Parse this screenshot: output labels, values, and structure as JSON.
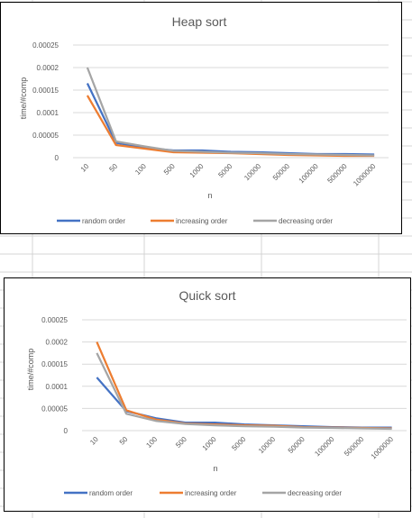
{
  "chart_data": [
    {
      "type": "line",
      "title": "Heap sort",
      "xlabel": "n",
      "ylabel": "time/#comp",
      "categories": [
        "10",
        "50",
        "100",
        "500",
        "1000",
        "5000",
        "10000",
        "50000",
        "100000",
        "500000",
        "1000000"
      ],
      "y_ticks": [
        "0.00025",
        "0.0002",
        "0.00015",
        "0.0001",
        "0.00005",
        "0"
      ],
      "ylim": [
        0,
        0.00025
      ],
      "grid": true,
      "legend_position": "bottom",
      "series": [
        {
          "name": "random order",
          "color": "#4472C4",
          "values": [
            0.000165,
            3.3e-05,
            2.2e-05,
            1.6e-05,
            1.6e-05,
            1.3e-05,
            1.2e-05,
            1e-05,
            8e-06,
            8e-06,
            7e-06
          ]
        },
        {
          "name": "increasing order",
          "color": "#ED7D31",
          "values": [
            0.000138,
            2.8e-05,
            2e-05,
            1.2e-05,
            1.1e-05,
            1e-05,
            8e-06,
            6e-06,
            5e-06,
            4e-06,
            4e-06
          ]
        },
        {
          "name": "decreasing order",
          "color": "#A5A5A5",
          "values": [
            0.0002,
            3.6e-05,
            2.5e-05,
            1.5e-05,
            1.3e-05,
            1.1e-05,
            1e-05,
            8e-06,
            7e-06,
            6e-06,
            5e-06
          ]
        }
      ]
    },
    {
      "type": "line",
      "title": "Quick sort",
      "xlabel": "n",
      "ylabel": "time/#comp",
      "categories": [
        "10",
        "50",
        "100",
        "500",
        "1000",
        "5000",
        "10000",
        "50000",
        "100000",
        "500000",
        "1000000"
      ],
      "y_ticks": [
        "0.00025",
        "0.0002",
        "0.00015",
        "0.0001",
        "0.00005",
        "0"
      ],
      "ylim": [
        0,
        0.00025
      ],
      "grid": true,
      "legend_position": "bottom",
      "series": [
        {
          "name": "random order",
          "color": "#4472C4",
          "values": [
            0.00012,
            4.4e-05,
            2.8e-05,
            1.8e-05,
            1.8e-05,
            1.4e-05,
            1.2e-05,
            1e-05,
            8e-06,
            7e-06,
            7e-06
          ]
        },
        {
          "name": "increasing order",
          "color": "#ED7D31",
          "values": [
            0.0002,
            4.6e-05,
            2.5e-05,
            1.6e-05,
            1.4e-05,
            1.2e-05,
            1.1e-05,
            8e-06,
            7e-06,
            6e-06,
            5e-06
          ]
        },
        {
          "name": "decreasing order",
          "color": "#A5A5A5",
          "values": [
            0.000175,
            3.8e-05,
            2.2e-05,
            1.5e-05,
            1.2e-05,
            1e-05,
            9e-06,
            7e-06,
            6e-06,
            5e-06,
            4e-06
          ]
        }
      ]
    }
  ]
}
